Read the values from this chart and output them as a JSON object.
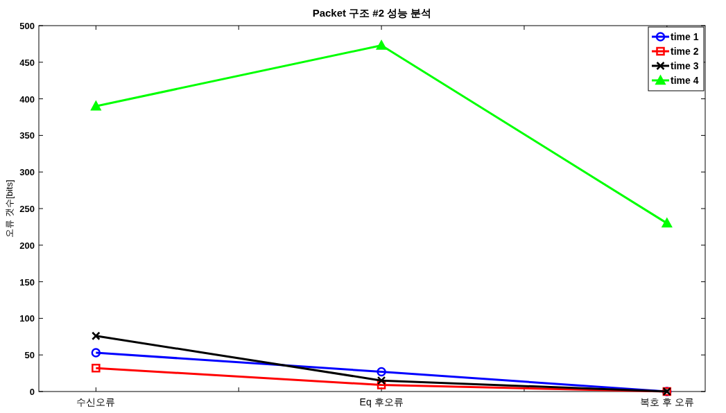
{
  "chart_data": {
    "type": "line",
    "title": "Packet 구조 #2 성능 분석",
    "ylabel": "오류 갯수[bits]",
    "categories": [
      "수신오류",
      "Eq 후오류",
      "복호 후 오류"
    ],
    "ylim": [
      0,
      500
    ],
    "yticks": [
      0,
      50,
      100,
      150,
      200,
      250,
      300,
      350,
      400,
      450,
      500
    ],
    "grid": false,
    "legend": "top right",
    "line_style": "solid",
    "series": [
      {
        "name": "time 1",
        "color": "#0000ff",
        "marker": "circle",
        "values": [
          53,
          27,
          0
        ]
      },
      {
        "name": "time 2",
        "color": "#ff0000",
        "marker": "square",
        "values": [
          32,
          9,
          0
        ]
      },
      {
        "name": "time 3",
        "color": "#000000",
        "marker": "cross",
        "values": [
          76,
          15,
          0
        ]
      },
      {
        "name": "time 4",
        "color": "#00ff00",
        "marker": "triangle",
        "values": [
          390,
          473,
          230
        ]
      }
    ]
  }
}
